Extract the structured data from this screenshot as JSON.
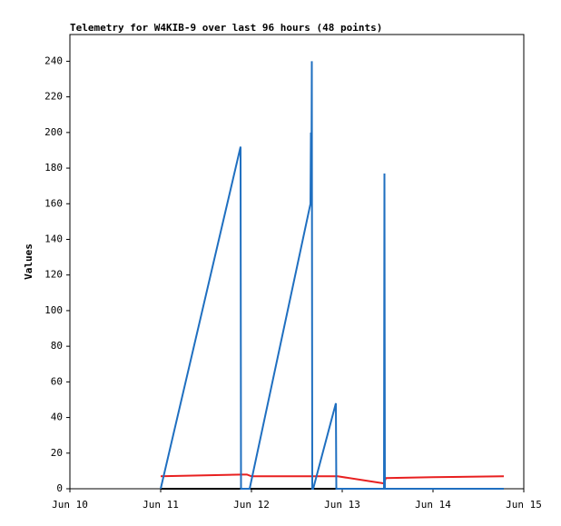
{
  "chart_data": {
    "type": "line",
    "title": "Telemetry for W4KIB-9 over last 96 hours (48 points)",
    "y_label": "Values",
    "xlim": [
      0,
      5
    ],
    "xticks": [
      {
        "value": 0,
        "label": "Jun 10"
      },
      {
        "value": 1,
        "label": "Jun 11"
      },
      {
        "value": 2,
        "label": "Jun 12"
      },
      {
        "value": 3,
        "label": "Jun 13"
      },
      {
        "value": 4,
        "label": "Jun 14"
      },
      {
        "value": 5,
        "label": "Jun 15"
      }
    ],
    "ylim": [
      0,
      255
    ],
    "yticks": [
      0,
      20,
      40,
      60,
      80,
      100,
      120,
      140,
      160,
      180,
      200,
      220,
      240
    ],
    "series": [
      {
        "color": "#000000",
        "x": [
          1.0,
          4.78
        ],
        "values": [
          0,
          0
        ]
      },
      {
        "color": "#e82020",
        "x": [
          1.0,
          1.9,
          1.95,
          2.0,
          2.95,
          3.46,
          3.48,
          4.0,
          4.78
        ],
        "values": [
          7,
          8,
          8,
          7,
          7,
          3,
          6,
          6.5,
          7
        ]
      },
      {
        "color": "#1f6fc0",
        "x": [
          1.0,
          1.88,
          1.885,
          1.98,
          2.65,
          2.655,
          2.66,
          2.665,
          2.67,
          2.68,
          2.93,
          2.935,
          3.46,
          3.465,
          3.47,
          4.78
        ],
        "values": [
          0,
          192,
          0,
          0,
          160,
          200,
          160,
          240,
          0,
          0,
          48,
          0,
          0,
          177,
          0,
          0
        ]
      }
    ]
  }
}
